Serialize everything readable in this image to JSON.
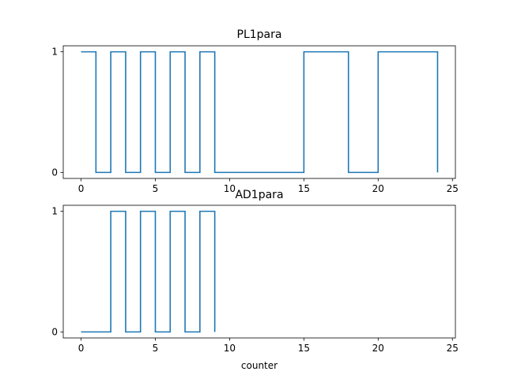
{
  "chart_data": [
    {
      "type": "line",
      "step": "post",
      "title": "PL1para",
      "xlabel": "",
      "ylabel": "",
      "xlim": [
        -1.2,
        25.2
      ],
      "ylim": [
        -0.05,
        1.05
      ],
      "xticks": [
        0,
        5,
        10,
        15,
        20,
        25
      ],
      "yticks": [
        0,
        1
      ],
      "grid": false,
      "series": [
        {
          "x": [
            0,
            1,
            2,
            3,
            4,
            5,
            6,
            7,
            8,
            9,
            10,
            11,
            12,
            13,
            14,
            15,
            16,
            17,
            18,
            19,
            20,
            21,
            22,
            23,
            24
          ],
          "values": [
            1,
            0,
            1,
            0,
            1,
            0,
            1,
            0,
            1,
            0,
            0,
            0,
            0,
            0,
            0,
            1,
            1,
            1,
            0,
            0,
            1,
            1,
            1,
            1,
            0
          ],
          "color": "#1f77b4"
        }
      ]
    },
    {
      "type": "line",
      "step": "post",
      "title": "AD1para",
      "xlabel": "counter",
      "ylabel": "",
      "xlim": [
        -1.2,
        25.2
      ],
      "ylim": [
        -0.05,
        1.05
      ],
      "xticks": [
        0,
        5,
        10,
        15,
        20,
        25
      ],
      "yticks": [
        0,
        1
      ],
      "grid": false,
      "series": [
        {
          "x": [
            0,
            1,
            2,
            3,
            4,
            5,
            6,
            7,
            8,
            9
          ],
          "values": [
            0,
            0,
            1,
            0,
            1,
            0,
            1,
            0,
            1,
            0
          ],
          "color": "#1f77b4"
        }
      ]
    }
  ]
}
